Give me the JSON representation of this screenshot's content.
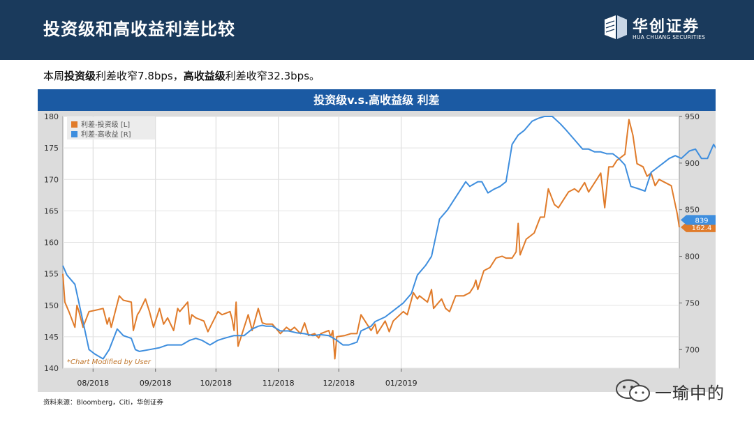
{
  "header": {
    "title": "投资级和高收益利差比较",
    "logo_cn": "华创证券",
    "logo_en": "HUA CHUANG SECURITIES"
  },
  "summary": {
    "p1": "本周",
    "b1": "投资级",
    "p2": "利差收窄7.8bps，",
    "b2": "高收益级",
    "p3": "利差收窄32.3bps。"
  },
  "source": "资料来源：Bloomberg，Citi，华创证券",
  "watermark": "一瑜中的",
  "colors": {
    "ig": "#e07b2a",
    "hy": "#3e8ede",
    "header": "#1a3a5c",
    "chart_head": "#1b5aa3"
  },
  "chart_data": {
    "type": "line",
    "title": "投资级v.s.高收益级 利差",
    "annotation": "*Chart Modified by User",
    "legend_position": "top-left",
    "grid": true,
    "x_ticks": [
      "08/2018",
      "09/2018",
      "10/2018",
      "11/2018",
      "12/2018",
      "01/2019"
    ],
    "y_left": {
      "lim": [
        140,
        180
      ],
      "ticks": [
        "140",
        "145",
        "150",
        "155",
        "160",
        "165",
        "170",
        "175",
        "180"
      ]
    },
    "y_right": {
      "lim": [
        680,
        950
      ],
      "ticks": [
        "700",
        "750",
        "800",
        "850",
        "900",
        "950"
      ]
    },
    "series": [
      {
        "name": "利差-投资级 [L]",
        "axis": "left",
        "last_label": "162.4",
        "points": [
          [
            "2018-07-17",
            155
          ],
          [
            "2018-07-18",
            150.5
          ],
          [
            "2018-07-20",
            149
          ],
          [
            "2018-07-23",
            146.5
          ],
          [
            "2018-07-24",
            150
          ],
          [
            "2018-07-25",
            149
          ],
          [
            "2018-07-27",
            146.5
          ],
          [
            "2018-07-30",
            149
          ],
          [
            "2018-08-02",
            149.2
          ],
          [
            "2018-08-06",
            149.5
          ],
          [
            "2018-08-08",
            147
          ],
          [
            "2018-08-09",
            148
          ],
          [
            "2018-08-10",
            146.5
          ],
          [
            "2018-08-14",
            151.5
          ],
          [
            "2018-08-16",
            150.8
          ],
          [
            "2018-08-20",
            150.5
          ],
          [
            "2018-08-21",
            146
          ],
          [
            "2018-08-23",
            148.5
          ],
          [
            "2018-08-24",
            149
          ],
          [
            "2018-08-27",
            151
          ],
          [
            "2018-08-29",
            149
          ],
          [
            "2018-08-31",
            146.5
          ],
          [
            "2018-09-03",
            149.5
          ],
          [
            "2018-09-05",
            147
          ],
          [
            "2018-09-07",
            148
          ],
          [
            "2018-09-10",
            146
          ],
          [
            "2018-09-12",
            149.5
          ],
          [
            "2018-09-13",
            149
          ],
          [
            "2018-09-17",
            150.5
          ],
          [
            "2018-09-18",
            147
          ],
          [
            "2018-09-19",
            148.5
          ],
          [
            "2018-09-21",
            148
          ],
          [
            "2018-09-25",
            147.5
          ],
          [
            "2018-09-27",
            145.8
          ],
          [
            "2018-10-02",
            149
          ],
          [
            "2018-10-04",
            148.5
          ],
          [
            "2018-10-08",
            149
          ],
          [
            "2018-10-09",
            147.8
          ],
          [
            "2018-10-10",
            146
          ],
          [
            "2018-10-11",
            150.5
          ],
          [
            "2018-10-12",
            143.5
          ],
          [
            "2018-10-15",
            146.5
          ],
          [
            "2018-10-17",
            148.5
          ],
          [
            "2018-10-19",
            146
          ],
          [
            "2018-10-22",
            149.5
          ],
          [
            "2018-10-24",
            147.2
          ],
          [
            "2018-10-26",
            147
          ],
          [
            "2018-10-29",
            147
          ],
          [
            "2018-11-02",
            145.5
          ],
          [
            "2018-11-05",
            146.5
          ],
          [
            "2018-11-07",
            146
          ],
          [
            "2018-11-09",
            146.5
          ],
          [
            "2018-11-12",
            145.5
          ],
          [
            "2018-11-14",
            147.2
          ],
          [
            "2018-11-16",
            145.2
          ],
          [
            "2018-11-19",
            145.5
          ],
          [
            "2018-11-21",
            144.8
          ],
          [
            "2018-11-22",
            145.5
          ],
          [
            "2018-11-26",
            146
          ],
          [
            "2018-11-27",
            145
          ],
          [
            "2018-11-28",
            146
          ],
          [
            "2018-11-29",
            141.5
          ],
          [
            "2018-11-30",
            145
          ],
          [
            "2018-12-04",
            145.2
          ],
          [
            "2018-12-07",
            145.5
          ],
          [
            "2018-12-10",
            145.5
          ],
          [
            "2018-12-12",
            148.5
          ],
          [
            "2018-12-14",
            147.5
          ],
          [
            "2018-12-17",
            146
          ],
          [
            "2018-12-19",
            147
          ],
          [
            "2018-12-20",
            145.5
          ],
          [
            "2018-12-24",
            147.5
          ],
          [
            "2018-12-26",
            145.8
          ],
          [
            "2018-12-28",
            147.5
          ],
          [
            "2019-01-02",
            149
          ],
          [
            "2019-01-04",
            148.5
          ],
          [
            "2019-01-07",
            152
          ],
          [
            "2019-01-09",
            151
          ],
          [
            "2019-01-10",
            151.5
          ],
          [
            "2019-01-14",
            150.5
          ],
          [
            "2019-01-16",
            152.5
          ],
          [
            "2019-01-17",
            149.5
          ],
          [
            "2019-01-21",
            151
          ],
          [
            "2019-01-23",
            149.5
          ],
          [
            "2019-01-25",
            149
          ],
          [
            "2019-01-28",
            151.5
          ],
          [
            "2019-02-01",
            151.5
          ],
          [
            "2019-02-04",
            152
          ],
          [
            "2019-02-06",
            153
          ],
          [
            "2019-02-07",
            154
          ],
          [
            "2019-02-08",
            152.5
          ],
          [
            "2019-02-11",
            155.5
          ],
          [
            "2019-02-14",
            156
          ],
          [
            "2019-02-17",
            157.5
          ],
          [
            "2019-02-20",
            157.8
          ],
          [
            "2019-02-22",
            157.5
          ],
          [
            "2019-02-25",
            157.5
          ],
          [
            "2019-02-27",
            158.5
          ],
          [
            "2019-02-28",
            163
          ],
          [
            "2019-03-01",
            158
          ],
          [
            "2019-03-04",
            160.5
          ],
          [
            "2019-03-06",
            161
          ],
          [
            "2019-03-08",
            161.5
          ],
          [
            "2019-03-11",
            164
          ],
          [
            "2019-03-13",
            164
          ],
          [
            "2019-03-15",
            168.5
          ],
          [
            "2019-03-18",
            166
          ],
          [
            "2019-03-20",
            165.5
          ],
          [
            "2019-03-22",
            166.5
          ],
          [
            "2019-03-25",
            168
          ],
          [
            "2019-03-28",
            168.5
          ],
          [
            "2019-03-30",
            168
          ],
          [
            "2019-04-02",
            169.5
          ],
          [
            "2019-04-04",
            168
          ],
          [
            "2019-04-06",
            169
          ],
          [
            "2019-04-08",
            170
          ],
          [
            "2019-04-10",
            171
          ],
          [
            "2019-04-12",
            165.5
          ],
          [
            "2019-04-14",
            172
          ],
          [
            "2019-04-16",
            172
          ],
          [
            "2019-04-18",
            173
          ],
          [
            "2019-04-20",
            173.5
          ],
          [
            "2019-04-22",
            174
          ],
          [
            "2019-04-24",
            179.5
          ],
          [
            "2019-04-26",
            177
          ],
          [
            "2019-04-28",
            172.5
          ],
          [
            "2019-05-01",
            172
          ],
          [
            "2019-05-03",
            170.5
          ],
          [
            "2019-05-05",
            171
          ],
          [
            "2019-05-07",
            169
          ],
          [
            "2019-05-09",
            170
          ],
          [
            "2019-05-12",
            169.5
          ],
          [
            "2019-05-15",
            169
          ],
          [
            "2019-05-18",
            164.5
          ],
          [
            "2019-05-19",
            162.4
          ]
        ]
      },
      {
        "name": "利差-高收益 [R]",
        "axis": "right",
        "last_label": "839",
        "points": [
          [
            "2018-07-17",
            790
          ],
          [
            "2018-07-19",
            780
          ],
          [
            "2018-07-23",
            770
          ],
          [
            "2018-07-26",
            740
          ],
          [
            "2018-07-30",
            700
          ],
          [
            "2018-08-02",
            695
          ],
          [
            "2018-08-06",
            690
          ],
          [
            "2018-08-09",
            700
          ],
          [
            "2018-08-13",
            722
          ],
          [
            "2018-08-16",
            715
          ],
          [
            "2018-08-20",
            712
          ],
          [
            "2018-08-22",
            700
          ],
          [
            "2018-08-24",
            698
          ],
          [
            "2018-08-29",
            700
          ],
          [
            "2018-09-03",
            702
          ],
          [
            "2018-09-07",
            705
          ],
          [
            "2018-09-10",
            705
          ],
          [
            "2018-09-14",
            705
          ],
          [
            "2018-09-18",
            710
          ],
          [
            "2018-09-21",
            712
          ],
          [
            "2018-09-24",
            710
          ],
          [
            "2018-09-28",
            705
          ],
          [
            "2018-10-02",
            710
          ],
          [
            "2018-10-05",
            712
          ],
          [
            "2018-10-10",
            715
          ],
          [
            "2018-10-15",
            715
          ],
          [
            "2018-10-19",
            722
          ],
          [
            "2018-10-22",
            725
          ],
          [
            "2018-10-24",
            726
          ],
          [
            "2018-10-26",
            725
          ],
          [
            "2018-10-29",
            725
          ],
          [
            "2018-11-02",
            720
          ],
          [
            "2018-11-06",
            720
          ],
          [
            "2018-11-10",
            718
          ],
          [
            "2018-11-14",
            717
          ],
          [
            "2018-11-18",
            715
          ],
          [
            "2018-11-22",
            716
          ],
          [
            "2018-11-26",
            715
          ],
          [
            "2018-11-30",
            710
          ],
          [
            "2018-12-03",
            705
          ],
          [
            "2018-12-06",
            705
          ],
          [
            "2018-12-10",
            708
          ],
          [
            "2018-12-12",
            720
          ],
          [
            "2018-12-17",
            725
          ],
          [
            "2018-12-19",
            730
          ],
          [
            "2018-12-24",
            735
          ],
          [
            "2018-12-27",
            740
          ],
          [
            "2019-01-02",
            750
          ],
          [
            "2019-01-06",
            760
          ],
          [
            "2019-01-09",
            780
          ],
          [
            "2019-01-13",
            790
          ],
          [
            "2019-01-16",
            800
          ],
          [
            "2019-01-20",
            840
          ],
          [
            "2019-01-24",
            850
          ],
          [
            "2019-01-27",
            860
          ],
          [
            "2019-02-02",
            880
          ],
          [
            "2019-02-04",
            875
          ],
          [
            "2019-02-08",
            880
          ],
          [
            "2019-02-10",
            880
          ],
          [
            "2019-02-13",
            868
          ],
          [
            "2019-02-16",
            872
          ],
          [
            "2019-02-19",
            875
          ],
          [
            "2019-02-22",
            880
          ],
          [
            "2019-02-25",
            920
          ],
          [
            "2019-02-28",
            930
          ],
          [
            "2019-03-03",
            935
          ],
          [
            "2019-03-07",
            945
          ],
          [
            "2019-03-10",
            948
          ],
          [
            "2019-03-13",
            950
          ],
          [
            "2019-03-17",
            950
          ],
          [
            "2019-03-21",
            942
          ],
          [
            "2019-03-24",
            935
          ],
          [
            "2019-03-28",
            925
          ],
          [
            "2019-04-01",
            915
          ],
          [
            "2019-04-04",
            915
          ],
          [
            "2019-04-07",
            912
          ],
          [
            "2019-04-10",
            912
          ],
          [
            "2019-04-13",
            910
          ],
          [
            "2019-04-16",
            910
          ],
          [
            "2019-04-19",
            905
          ],
          [
            "2019-04-22",
            898
          ],
          [
            "2019-04-25",
            875
          ],
          [
            "2019-04-28",
            873
          ],
          [
            "2019-05-02",
            870
          ],
          [
            "2019-05-05",
            890
          ],
          [
            "2019-05-08",
            895
          ],
          [
            "2019-05-11",
            900
          ],
          [
            "2019-05-14",
            905
          ],
          [
            "2019-05-17",
            908
          ],
          [
            "2019-05-20",
            905
          ],
          [
            "2019-05-24",
            913
          ],
          [
            "2019-05-27",
            915
          ],
          [
            "2019-05-30",
            905
          ],
          [
            "2019-06-02",
            905
          ],
          [
            "2019-06-05",
            920
          ],
          [
            "2019-06-08",
            910
          ],
          [
            "2019-06-11",
            900
          ],
          [
            "2019-06-14",
            880
          ],
          [
            "2019-06-17",
            870
          ],
          [
            "2019-06-20",
            870
          ],
          [
            "2019-06-23",
            865
          ],
          [
            "2019-06-26",
            848
          ],
          [
            "2019-06-29",
            839
          ]
        ]
      }
    ]
  }
}
